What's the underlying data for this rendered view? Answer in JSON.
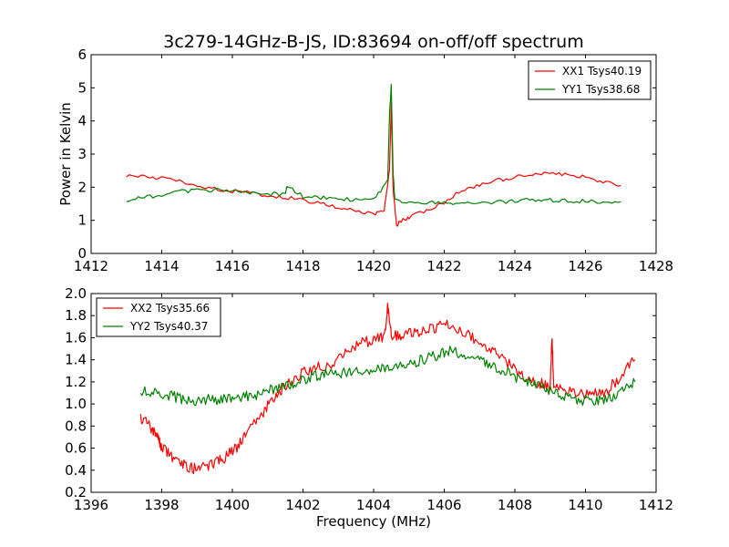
{
  "figure": {
    "title": "3c279-14GHz-B-JS, ID:83694 on-off/off spectrum"
  },
  "chart_data": [
    {
      "type": "line",
      "title": "3c279-14GHz-B-JS, ID:83694 on-off/off spectrum",
      "xlabel": "",
      "ylabel": "Power in Kelvin",
      "xlim": [
        1412,
        1428
      ],
      "ylim": [
        0,
        6
      ],
      "xticks": [
        1412,
        1414,
        1416,
        1418,
        1420,
        1422,
        1424,
        1426,
        1428
      ],
      "yticks": [
        0,
        1,
        2,
        3,
        4,
        5,
        6
      ],
      "grid": false,
      "legend": "top-right",
      "series": [
        {
          "name": "XX1 Tsys40.19",
          "color": "#ff0000",
          "x": [
            1413.0,
            1413.5,
            1414.0,
            1414.5,
            1415.0,
            1415.5,
            1416.0,
            1416.5,
            1417.0,
            1417.5,
            1418.0,
            1418.5,
            1419.0,
            1419.5,
            1420.0,
            1420.3,
            1420.45,
            1420.5,
            1420.55,
            1420.65,
            1420.8,
            1421.0,
            1421.5,
            1422.0,
            1422.5,
            1423.0,
            1423.5,
            1424.0,
            1424.5,
            1425.0,
            1425.5,
            1426.0,
            1426.5,
            1427.0
          ],
          "y": [
            2.35,
            2.32,
            2.28,
            2.18,
            2.05,
            1.95,
            1.88,
            1.82,
            1.76,
            1.7,
            1.6,
            1.5,
            1.38,
            1.28,
            1.2,
            1.3,
            2.5,
            4.5,
            2.0,
            0.85,
            1.0,
            1.1,
            1.3,
            1.55,
            1.9,
            2.05,
            2.2,
            2.3,
            2.38,
            2.42,
            2.38,
            2.3,
            2.15,
            2.05
          ]
        },
        {
          "name": "YY1 Tsys38.68",
          "color": "#008000",
          "x": [
            1413.0,
            1413.5,
            1414.0,
            1414.5,
            1415.0,
            1415.5,
            1416.0,
            1416.5,
            1417.0,
            1417.5,
            1417.55,
            1418.0,
            1418.5,
            1419.0,
            1419.5,
            1420.0,
            1420.4,
            1420.45,
            1420.5,
            1420.55,
            1420.6,
            1421.0,
            1421.5,
            1422.0,
            1422.5,
            1423.0,
            1423.5,
            1424.0,
            1424.5,
            1425.0,
            1425.5,
            1426.0,
            1426.5,
            1427.0
          ],
          "y": [
            1.62,
            1.68,
            1.78,
            1.86,
            1.92,
            1.92,
            1.88,
            1.84,
            1.8,
            1.78,
            2.05,
            1.72,
            1.68,
            1.64,
            1.62,
            1.62,
            2.2,
            4.2,
            5.05,
            2.5,
            1.6,
            1.55,
            1.55,
            1.52,
            1.5,
            1.52,
            1.55,
            1.58,
            1.62,
            1.62,
            1.6,
            1.58,
            1.56,
            1.56
          ]
        }
      ]
    },
    {
      "type": "line",
      "title": "",
      "xlabel": "Frequency (MHz)",
      "ylabel": "",
      "xlim": [
        1396,
        1412
      ],
      "ylim": [
        0.2,
        2.0
      ],
      "xticks": [
        1396,
        1398,
        1400,
        1402,
        1404,
        1406,
        1408,
        1410,
        1412
      ],
      "yticks": [
        0.2,
        0.4,
        0.6,
        0.8,
        1.0,
        1.2,
        1.4,
        1.6,
        1.8,
        2.0
      ],
      "grid": false,
      "legend": "top-left",
      "series": [
        {
          "name": "XX2 Tsys35.66",
          "color": "#ff0000",
          "x": [
            1397.4,
            1397.7,
            1397.9,
            1398.0,
            1398.3,
            1398.6,
            1398.9,
            1399.2,
            1399.5,
            1399.8,
            1400.1,
            1400.4,
            1400.7,
            1401.0,
            1401.3,
            1401.6,
            1402.0,
            1402.4,
            1402.8,
            1403.2,
            1403.6,
            1404.0,
            1404.3,
            1404.4,
            1404.5,
            1404.8,
            1405.2,
            1405.6,
            1406.0,
            1406.4,
            1406.8,
            1407.2,
            1407.6,
            1408.0,
            1408.4,
            1408.8,
            1409.0,
            1409.05,
            1409.1,
            1409.4,
            1409.8,
            1410.2,
            1410.6,
            1411.0,
            1411.4
          ],
          "y": [
            0.88,
            0.78,
            0.68,
            0.6,
            0.52,
            0.45,
            0.42,
            0.42,
            0.46,
            0.52,
            0.6,
            0.72,
            0.85,
            0.98,
            1.1,
            1.2,
            1.28,
            1.33,
            1.36,
            1.45,
            1.55,
            1.58,
            1.6,
            1.9,
            1.62,
            1.62,
            1.65,
            1.68,
            1.72,
            1.68,
            1.6,
            1.52,
            1.42,
            1.32,
            1.22,
            1.18,
            1.15,
            1.62,
            1.15,
            1.12,
            1.1,
            1.08,
            1.12,
            1.25,
            1.4
          ]
        },
        {
          "name": "YY2 Tsys40.37",
          "color": "#008000",
          "x": [
            1397.4,
            1397.8,
            1398.2,
            1398.6,
            1399.0,
            1399.4,
            1399.8,
            1400.2,
            1400.6,
            1401.0,
            1401.4,
            1401.8,
            1402.2,
            1402.6,
            1403.0,
            1403.4,
            1403.8,
            1404.2,
            1404.6,
            1405.0,
            1405.4,
            1405.8,
            1406.2,
            1406.6,
            1407.0,
            1407.4,
            1407.8,
            1408.2,
            1408.6,
            1409.0,
            1409.4,
            1409.8,
            1410.2,
            1410.6,
            1411.0,
            1411.4
          ],
          "y": [
            1.1,
            1.12,
            1.08,
            1.04,
            1.03,
            1.04,
            1.05,
            1.06,
            1.08,
            1.12,
            1.16,
            1.2,
            1.24,
            1.27,
            1.28,
            1.3,
            1.3,
            1.32,
            1.35,
            1.37,
            1.4,
            1.44,
            1.48,
            1.45,
            1.4,
            1.34,
            1.28,
            1.22,
            1.17,
            1.12,
            1.08,
            1.04,
            1.02,
            1.05,
            1.1,
            1.2
          ]
        }
      ]
    }
  ]
}
